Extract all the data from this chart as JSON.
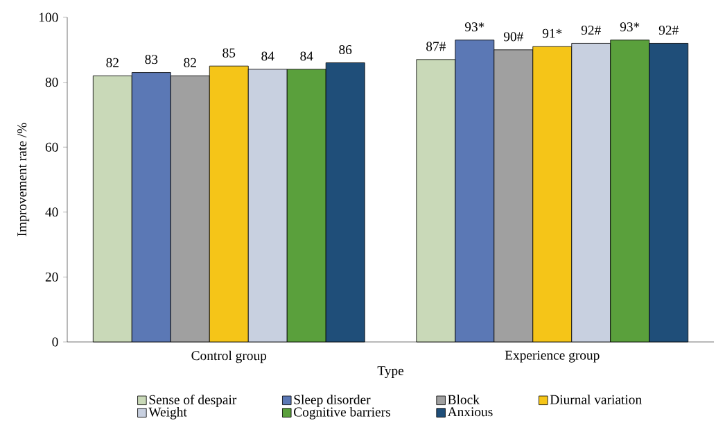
{
  "chart_data": {
    "type": "bar",
    "xlabel": "Type",
    "ylabel": "Improvement rate /%",
    "categories": [
      "Control group",
      "Experience group"
    ],
    "ylim": [
      0,
      100
    ],
    "yticks": [
      0,
      20,
      40,
      60,
      80,
      100
    ],
    "legend": "bottom",
    "grid": false,
    "series": [
      {
        "name": "Sense of despair",
        "color": "#c9d9b8",
        "values": [
          82,
          87
        ],
        "value_labels": [
          "82",
          "87#"
        ]
      },
      {
        "name": "Sleep disorder",
        "color": "#5b78b5",
        "values": [
          83,
          93
        ],
        "value_labels": [
          "83",
          "93*"
        ]
      },
      {
        "name": "Block",
        "color": "#a0a0a0",
        "values": [
          82,
          90
        ],
        "value_labels": [
          "82",
          "90#"
        ]
      },
      {
        "name": "Diurnal variation",
        "color": "#f5c518",
        "values": [
          85,
          91
        ],
        "value_labels": [
          "85",
          "91*"
        ]
      },
      {
        "name": "Weight",
        "color": "#c8d0e0",
        "values": [
          84,
          92
        ],
        "value_labels": [
          "84",
          "92#"
        ]
      },
      {
        "name": "Cognitive barriers",
        "color": "#5aa03c",
        "values": [
          84,
          93
        ],
        "value_labels": [
          "84",
          "93*"
        ]
      },
      {
        "name": "Anxious",
        "color": "#1f4e79",
        "values": [
          86,
          92
        ],
        "value_labels": [
          "86",
          "92#"
        ]
      }
    ]
  }
}
